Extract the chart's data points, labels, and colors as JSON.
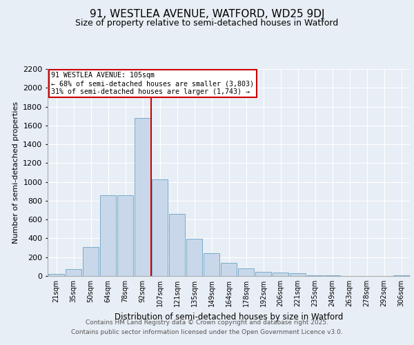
{
  "title1": "91, WESTLEA AVENUE, WATFORD, WD25 9DJ",
  "title2": "Size of property relative to semi-detached houses in Watford",
  "xlabel": "Distribution of semi-detached houses by size in Watford",
  "ylabel": "Number of semi-detached properties",
  "bar_labels": [
    "21sqm",
    "35sqm",
    "50sqm",
    "64sqm",
    "78sqm",
    "92sqm",
    "107sqm",
    "121sqm",
    "135sqm",
    "149sqm",
    "164sqm",
    "178sqm",
    "192sqm",
    "206sqm",
    "221sqm",
    "235sqm",
    "249sqm",
    "263sqm",
    "278sqm",
    "292sqm",
    "306sqm"
  ],
  "bar_values": [
    20,
    75,
    310,
    860,
    860,
    1680,
    1030,
    660,
    395,
    245,
    140,
    80,
    45,
    40,
    30,
    10,
    5,
    2,
    0,
    0,
    10
  ],
  "bar_color": "#c8d8ea",
  "bar_edge_color": "#7aaac8",
  "property_sqm": 105,
  "pct_smaller": 68,
  "n_smaller": "3,803",
  "pct_larger": 31,
  "n_larger": "1,743",
  "annotation_text_line1": "91 WESTLEA AVENUE: 105sqm",
  "annotation_text_line2": "← 68% of semi-detached houses are smaller (3,803)",
  "annotation_text_line3": "31% of semi-detached houses are larger (1,743) →",
  "annotation_box_color": "white",
  "annotation_box_edge_color": "#cc0000",
  "vline_color": "#cc0000",
  "ylim": [
    0,
    2200
  ],
  "yticks": [
    0,
    200,
    400,
    600,
    800,
    1000,
    1200,
    1400,
    1600,
    1800,
    2000,
    2200
  ],
  "bg_color": "#e8eef5",
  "plot_bg_color": "#e8eef5",
  "footer_line1": "Contains HM Land Registry data © Crown copyright and database right 2025.",
  "footer_line2": "Contains public sector information licensed under the Open Government Licence v3.0."
}
